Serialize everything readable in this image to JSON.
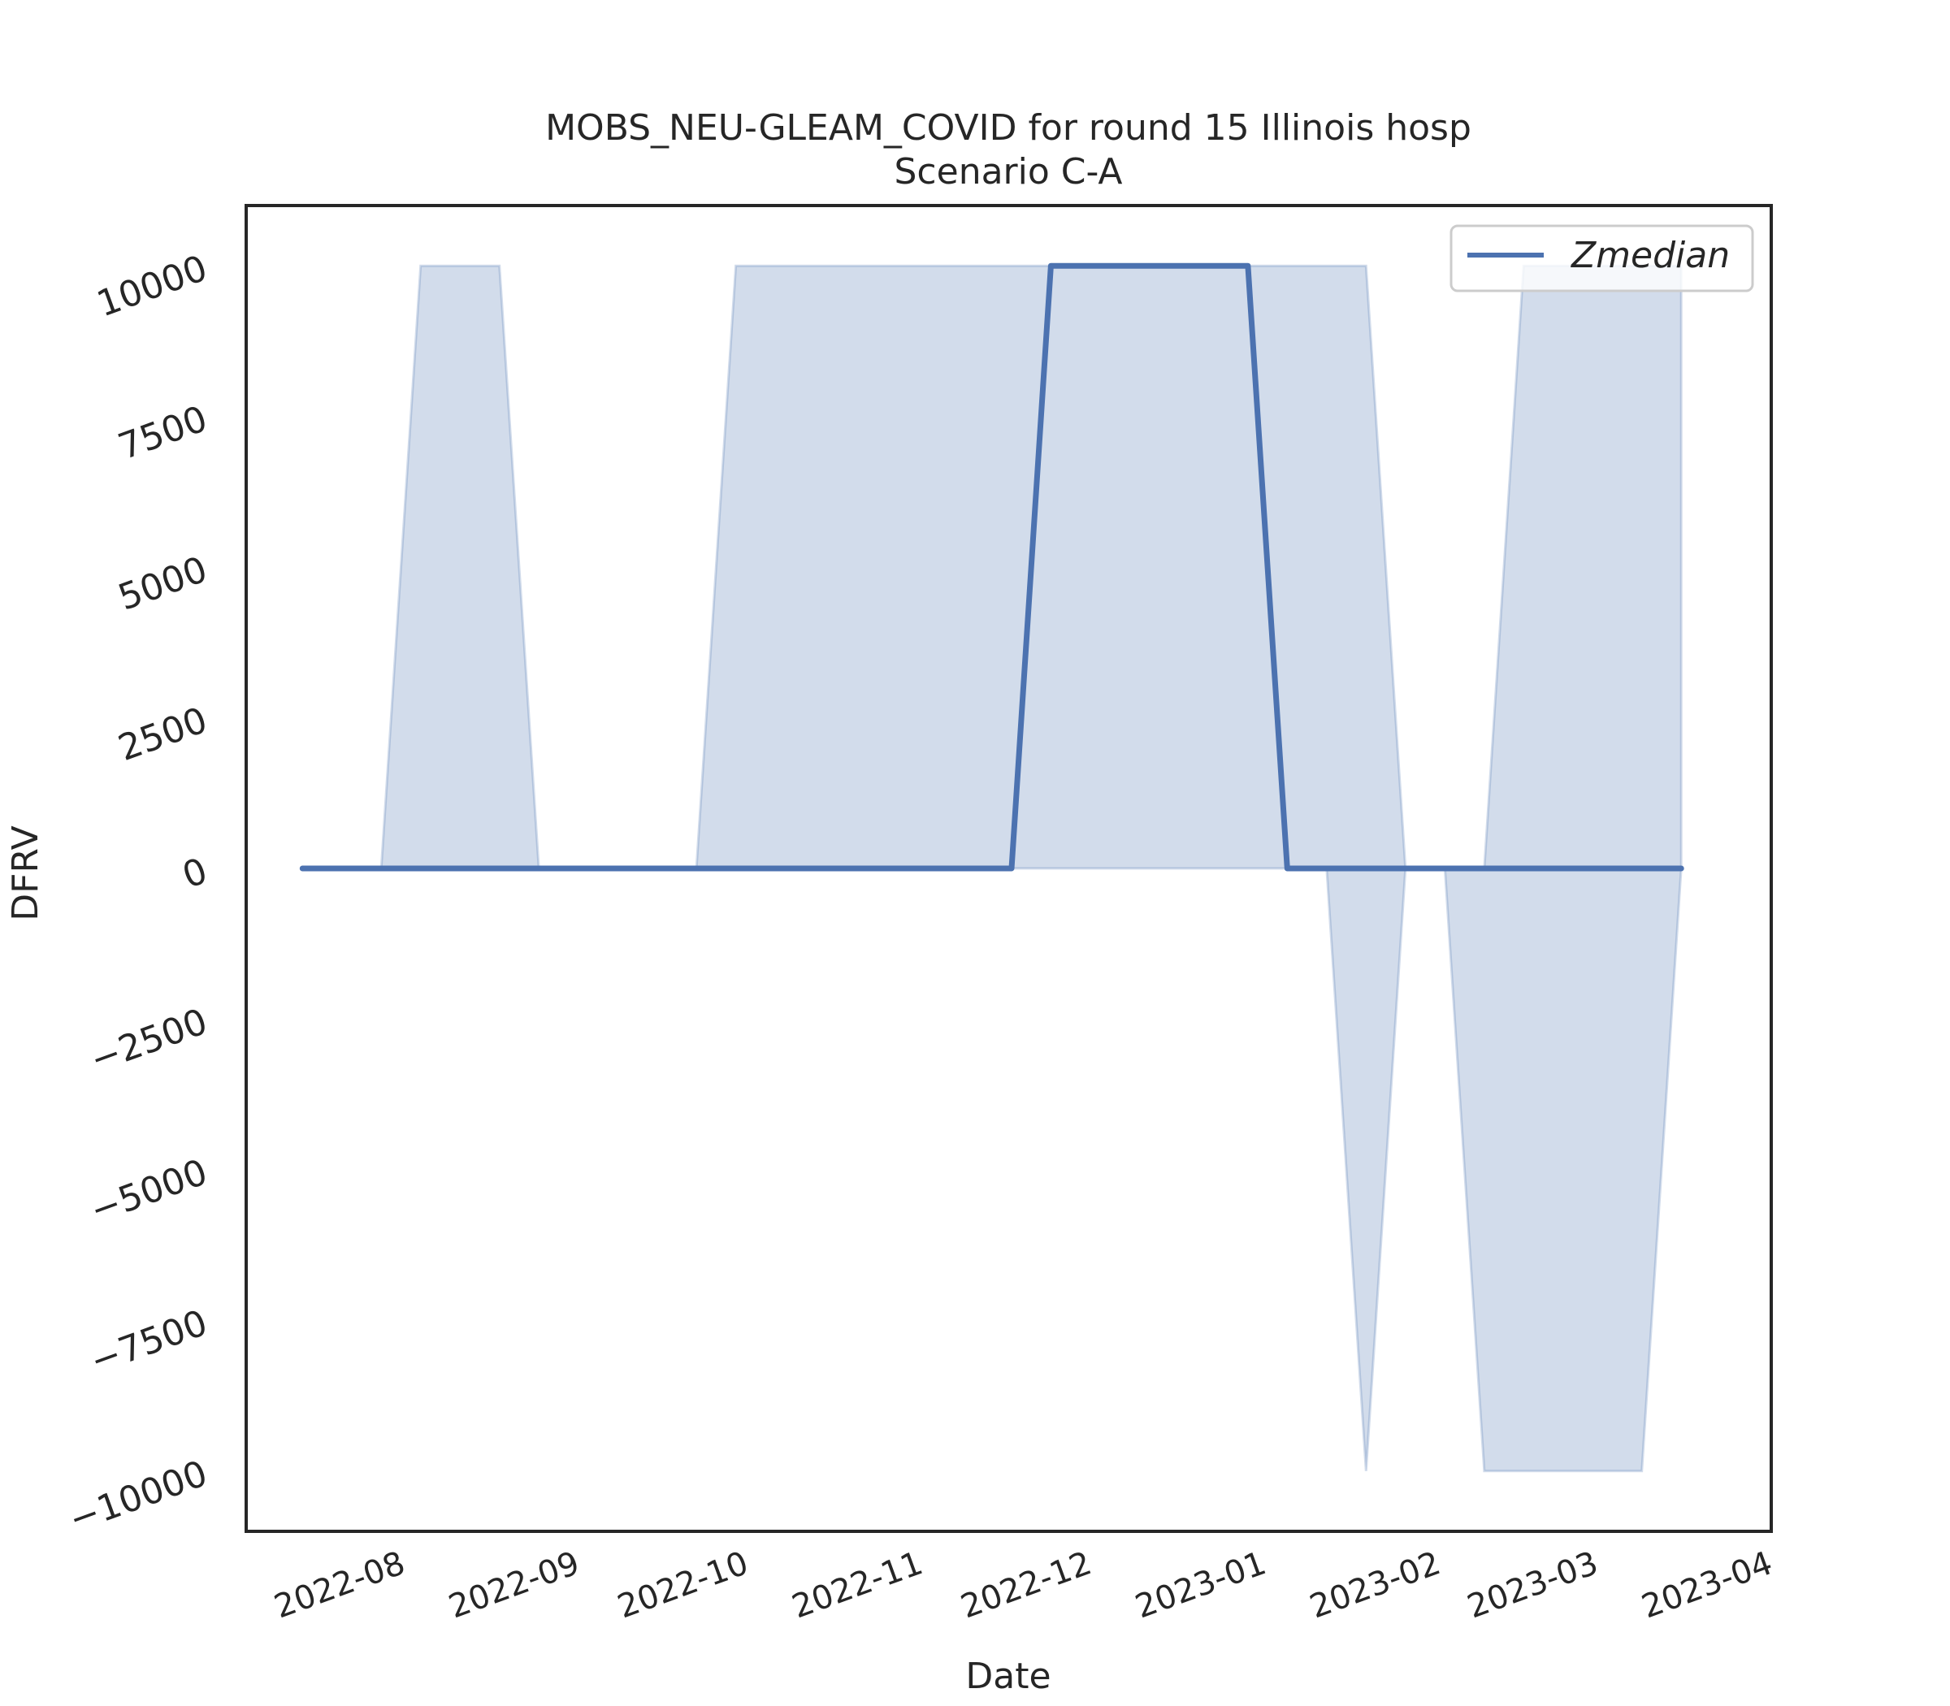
{
  "chart_data": {
    "type": "line",
    "title": "MOBS_NEU-GLEAM_COVID for round 15 Illinois hosp",
    "subtitle": "Scenario C-A",
    "xlabel": "Date",
    "ylabel": "DFRV",
    "x_ticks": [
      "2022-08",
      "2022-09",
      "2022-10",
      "2022-11",
      "2022-12",
      "2023-01",
      "2023-02",
      "2023-03",
      "2023-04"
    ],
    "y_ticks": [
      10000,
      7500,
      5000,
      2500,
      0,
      -2500,
      -5000,
      -7500,
      -10000
    ],
    "y_tick_labels": [
      "10000",
      "7500",
      "5000",
      "2500",
      "0",
      "−2500",
      "−5000",
      "−7500",
      "−10000"
    ],
    "ylim": [
      -11000,
      11000
    ],
    "xlim": [
      "2022-07-06",
      "2023-04-03"
    ],
    "grid": false,
    "legend_position": "top-right",
    "x": [
      "2022-07-16",
      "2022-07-23",
      "2022-07-30",
      "2022-08-06",
      "2022-08-13",
      "2022-08-20",
      "2022-08-27",
      "2022-09-03",
      "2022-09-10",
      "2022-09-17",
      "2022-09-24",
      "2022-10-01",
      "2022-10-08",
      "2022-10-15",
      "2022-10-22",
      "2022-10-29",
      "2022-11-05",
      "2022-11-12",
      "2022-11-19",
      "2022-11-26",
      "2022-12-03",
      "2022-12-10",
      "2022-12-17",
      "2022-12-24",
      "2022-12-31",
      "2023-01-07",
      "2023-01-14",
      "2023-01-21",
      "2023-01-28",
      "2023-02-04",
      "2023-02-11",
      "2023-02-18",
      "2023-02-25",
      "2023-03-04",
      "2023-03-11",
      "2023-03-18"
    ],
    "series": [
      {
        "name": "Zmedian",
        "color": "#4c72b0",
        "values": [
          0,
          0,
          0,
          0,
          0,
          0,
          0,
          0,
          0,
          0,
          0,
          0,
          0,
          0,
          0,
          0,
          0,
          0,
          0,
          10000,
          10000,
          10000,
          10000,
          10000,
          10000,
          0,
          0,
          0,
          0,
          0,
          0,
          0,
          0,
          0,
          0,
          0
        ]
      }
    ],
    "band": {
      "color": "#4c72b0",
      "lower": [
        0,
        0,
        0,
        0,
        0,
        0,
        0,
        0,
        0,
        0,
        0,
        0,
        0,
        0,
        0,
        0,
        0,
        0,
        0,
        0,
        0,
        0,
        0,
        0,
        0,
        0,
        0,
        -10000,
        0,
        0,
        -10000,
        -10000,
        -10000,
        -10000,
        -10000,
        0
      ],
      "upper": [
        0,
        0,
        0,
        10000,
        10000,
        10000,
        0,
        0,
        0,
        0,
        0,
        10000,
        10000,
        10000,
        10000,
        10000,
        10000,
        10000,
        10000,
        10000,
        10000,
        10000,
        10000,
        10000,
        10000,
        10000,
        10000,
        10000,
        0,
        0,
        0,
        10000,
        10000,
        10000,
        10000,
        10000
      ]
    }
  }
}
